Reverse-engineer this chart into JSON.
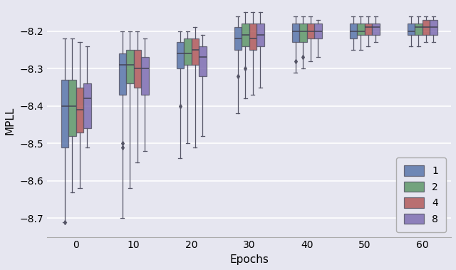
{
  "title": "",
  "xlabel": "Epochs",
  "ylabel": "MPLL",
  "background_color": "#e6e6f0",
  "legend_labels": [
    "1",
    "2",
    "4",
    "8"
  ],
  "colors": [
    "#5572a8",
    "#5a9464",
    "#b05555",
    "#7b6ab0"
  ],
  "epochs": [
    0,
    10,
    20,
    30,
    40,
    50,
    60
  ],
  "ylim": [
    -8.75,
    -8.13
  ],
  "yticks": [
    -8.7,
    -8.6,
    -8.5,
    -8.4,
    -8.3,
    -8.2
  ],
  "xlim": [
    -5,
    65
  ],
  "box_width": 1.3,
  "offsets": [
    -1.95,
    -0.65,
    0.65,
    1.95
  ],
  "box_data": {
    "0": {
      "1": {
        "whislo": -8.71,
        "q1": -8.51,
        "med": -8.4,
        "q3": -8.33,
        "whishi": -8.22,
        "fliers": [
          -8.71
        ]
      },
      "2": {
        "whislo": -8.63,
        "q1": -8.48,
        "med": -8.4,
        "q3": -8.33,
        "whishi": -8.22,
        "fliers": []
      },
      "4": {
        "whislo": -8.62,
        "q1": -8.47,
        "med": -8.41,
        "q3": -8.35,
        "whishi": -8.23,
        "fliers": []
      },
      "8": {
        "whislo": -8.51,
        "q1": -8.46,
        "med": -8.38,
        "q3": -8.34,
        "whishi": -8.24,
        "fliers": []
      }
    },
    "10": {
      "1": {
        "whislo": -8.7,
        "q1": -8.37,
        "med": -8.29,
        "q3": -8.26,
        "whishi": -8.2,
        "fliers": [
          -8.51,
          -8.5
        ]
      },
      "2": {
        "whislo": -8.62,
        "q1": -8.34,
        "med": -8.29,
        "q3": -8.25,
        "whishi": -8.2,
        "fliers": []
      },
      "4": {
        "whislo": -8.55,
        "q1": -8.35,
        "med": -8.3,
        "q3": -8.25,
        "whishi": -8.2,
        "fliers": []
      },
      "8": {
        "whislo": -8.52,
        "q1": -8.37,
        "med": -8.3,
        "q3": -8.27,
        "whishi": -8.22,
        "fliers": []
      }
    },
    "20": {
      "1": {
        "whislo": -8.54,
        "q1": -8.3,
        "med": -8.26,
        "q3": -8.23,
        "whishi": -8.2,
        "fliers": [
          -8.4
        ]
      },
      "2": {
        "whislo": -8.5,
        "q1": -8.29,
        "med": -8.26,
        "q3": -8.22,
        "whishi": -8.2,
        "fliers": []
      },
      "4": {
        "whislo": -8.51,
        "q1": -8.29,
        "med": -8.25,
        "q3": -8.22,
        "whishi": -8.19,
        "fliers": []
      },
      "8": {
        "whislo": -8.48,
        "q1": -8.32,
        "med": -8.27,
        "q3": -8.24,
        "whishi": -8.21,
        "fliers": []
      }
    },
    "30": {
      "1": {
        "whislo": -8.42,
        "q1": -8.25,
        "med": -8.22,
        "q3": -8.19,
        "whishi": -8.16,
        "fliers": [
          -8.32
        ]
      },
      "2": {
        "whislo": -8.38,
        "q1": -8.24,
        "med": -8.21,
        "q3": -8.18,
        "whishi": -8.15,
        "fliers": [
          -8.3
        ]
      },
      "4": {
        "whislo": -8.37,
        "q1": -8.25,
        "med": -8.22,
        "q3": -8.18,
        "whishi": -8.15,
        "fliers": []
      },
      "8": {
        "whislo": -8.35,
        "q1": -8.24,
        "med": -8.21,
        "q3": -8.18,
        "whishi": -8.15,
        "fliers": []
      }
    },
    "40": {
      "1": {
        "whislo": -8.31,
        "q1": -8.23,
        "med": -8.2,
        "q3": -8.18,
        "whishi": -8.16,
        "fliers": [
          -8.28
        ]
      },
      "2": {
        "whislo": -8.3,
        "q1": -8.23,
        "med": -8.2,
        "q3": -8.18,
        "whishi": -8.16,
        "fliers": [
          -8.27
        ]
      },
      "4": {
        "whislo": -8.28,
        "q1": -8.22,
        "med": -8.2,
        "q3": -8.18,
        "whishi": -8.16,
        "fliers": []
      },
      "8": {
        "whislo": -8.27,
        "q1": -8.22,
        "med": -8.2,
        "q3": -8.18,
        "whishi": -8.17,
        "fliers": []
      }
    },
    "50": {
      "1": {
        "whislo": -8.25,
        "q1": -8.22,
        "med": -8.2,
        "q3": -8.18,
        "whishi": -8.16,
        "fliers": []
      },
      "2": {
        "whislo": -8.25,
        "q1": -8.21,
        "med": -8.2,
        "q3": -8.18,
        "whishi": -8.16,
        "fliers": []
      },
      "4": {
        "whislo": -8.24,
        "q1": -8.21,
        "med": -8.19,
        "q3": -8.18,
        "whishi": -8.16,
        "fliers": []
      },
      "8": {
        "whislo": -8.23,
        "q1": -8.21,
        "med": -8.19,
        "q3": -8.18,
        "whishi": -8.16,
        "fliers": []
      }
    },
    "60": {
      "1": {
        "whislo": -8.24,
        "q1": -8.21,
        "med": -8.2,
        "q3": -8.18,
        "whishi": -8.16,
        "fliers": []
      },
      "2": {
        "whislo": -8.24,
        "q1": -8.21,
        "med": -8.19,
        "q3": -8.18,
        "whishi": -8.16,
        "fliers": []
      },
      "4": {
        "whislo": -8.23,
        "q1": -8.21,
        "med": -8.19,
        "q3": -8.17,
        "whishi": -8.16,
        "fliers": []
      },
      "8": {
        "whislo": -8.23,
        "q1": -8.21,
        "med": -8.19,
        "q3": -8.17,
        "whishi": -8.16,
        "fliers": []
      }
    }
  }
}
